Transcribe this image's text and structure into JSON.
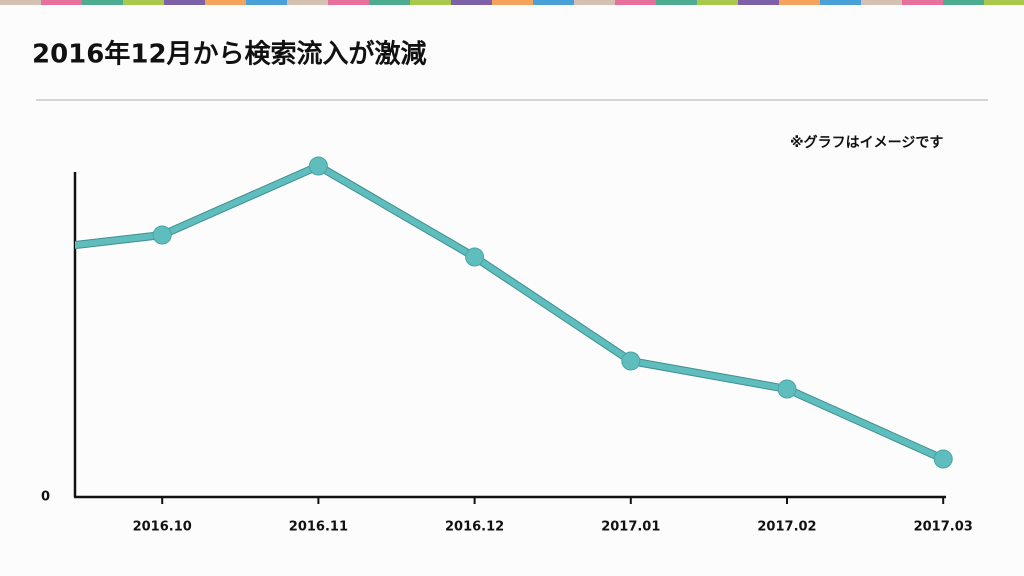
{
  "chart_data": {
    "type": "line",
    "title": "2016年12月から検索流入が激減",
    "note": "※グラフはイメージです",
    "categories": [
      null,
      "2016.10",
      "2016.11",
      "2016.12",
      "2017.01",
      "2017.02",
      "2017.03"
    ],
    "series": [
      {
        "color": "#5fbdbd",
        "values": [
          244,
          262,
          331,
          240,
          136,
          108,
          38
        ]
      }
    ],
    "ylim": [
      0,
      325
    ],
    "yticks": [
      0
    ]
  }
}
